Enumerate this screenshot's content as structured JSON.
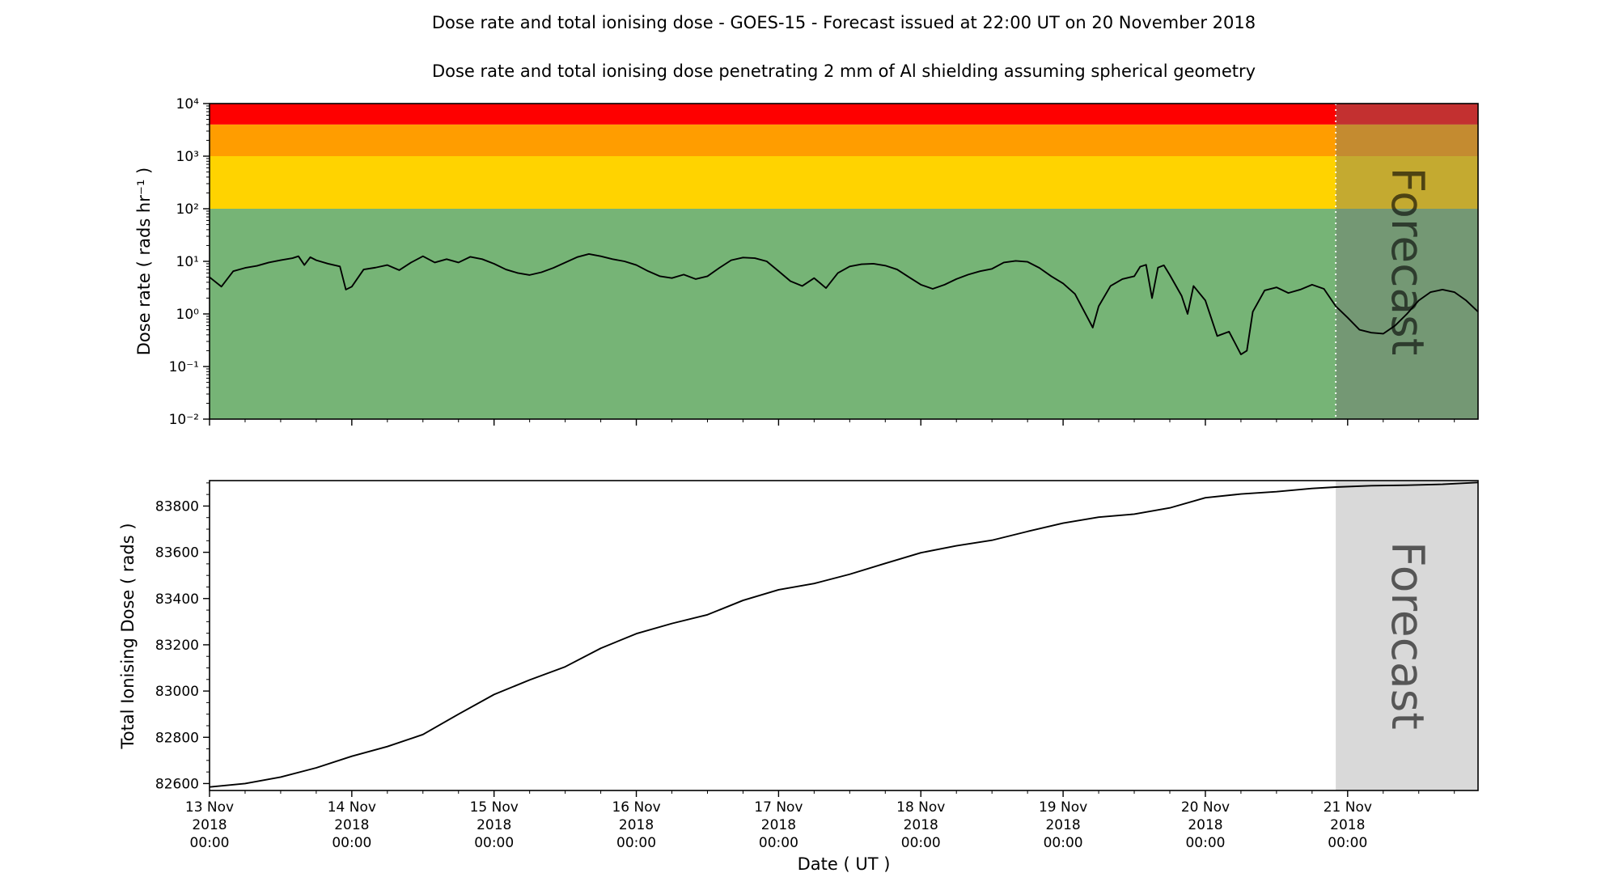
{
  "figure": {
    "title": "Dose rate and total ionising dose - GOES-15 - Forecast issued at 22:00 UT on 20 November 2018",
    "subtitle": "Dose rate and total ionising dose penetrating 2 mm of Al shielding assuming spherical geometry",
    "xlabel": "Date ( UT )",
    "forecast_label": "Forecast",
    "satellite": "GOES-15",
    "issued": "22:00 UT on 20 November 2018"
  },
  "colors": {
    "band_green": "#76b476",
    "band_yellow": "#ffd300",
    "band_orange": "#ff9d00",
    "band_red": "#fe0000",
    "forecast_overlay": "#737373",
    "forecast_fill_bottom": "#d9d9d9",
    "line": "#000000",
    "forecast_divider": "#ffffff",
    "watermark": "#6f6f6f"
  },
  "x_axis": {
    "tick_hours": [
      0,
      24,
      48,
      72,
      96,
      120,
      144,
      168,
      192
    ],
    "tick_labels": [
      [
        "13 Nov",
        "2018",
        "00:00"
      ],
      [
        "14 Nov",
        "2018",
        "00:00"
      ],
      [
        "15 Nov",
        "2018",
        "00:00"
      ],
      [
        "16 Nov",
        "2018",
        "00:00"
      ],
      [
        "17 Nov",
        "2018",
        "00:00"
      ],
      [
        "18 Nov",
        "2018",
        "00:00"
      ],
      [
        "19 Nov",
        "2018",
        "00:00"
      ],
      [
        "20 Nov",
        "2018",
        "00:00"
      ],
      [
        "21 Nov",
        "2018",
        "00:00"
      ]
    ],
    "minor_tick_interval_hours": 6,
    "start": "13 Nov 2018 00:00",
    "end_hour": 214
  },
  "chart_data": [
    {
      "type": "line",
      "name": "dose-rate",
      "title": "Dose rate",
      "ylabel": "Dose rate ( rads hr⁻¹ )",
      "yscale": "log",
      "ylim": [
        0.01,
        10000
      ],
      "xlim_hours": [
        0,
        214
      ],
      "forecast_start_hour": 190,
      "ytick_values": [
        0.01,
        0.1,
        1,
        10,
        100,
        1000,
        10000
      ],
      "ytick_labels": [
        "10⁻²",
        "10⁻¹",
        "10⁰",
        "10¹",
        "10²",
        "10³",
        "10⁴"
      ],
      "bands": [
        {
          "name": "green",
          "from": 0.01,
          "to": 100,
          "color": "#76b476"
        },
        {
          "name": "yellow",
          "from": 100,
          "to": 1000,
          "color": "#ffd300"
        },
        {
          "name": "orange",
          "from": 1000,
          "to": 4000,
          "color": "#ff9d00"
        },
        {
          "name": "red",
          "from": 4000,
          "to": 10000,
          "color": "#fe0000"
        }
      ],
      "points": [
        [
          0,
          5.0
        ],
        [
          2,
          3.3
        ],
        [
          4,
          6.5
        ],
        [
          6,
          7.5
        ],
        [
          8,
          8.2
        ],
        [
          10,
          9.5
        ],
        [
          12,
          10.5
        ],
        [
          14,
          11.5
        ],
        [
          15,
          12.5
        ],
        [
          16,
          8.5
        ],
        [
          17,
          12.0
        ],
        [
          18,
          10.5
        ],
        [
          20,
          9.0
        ],
        [
          22,
          8.0
        ],
        [
          23,
          2.9
        ],
        [
          24,
          3.3
        ],
        [
          26,
          7.0
        ],
        [
          28,
          7.6
        ],
        [
          30,
          8.5
        ],
        [
          32,
          6.8
        ],
        [
          34,
          9.5
        ],
        [
          36,
          12.5
        ],
        [
          38,
          9.5
        ],
        [
          40,
          11.0
        ],
        [
          42,
          9.5
        ],
        [
          44,
          12.2
        ],
        [
          46,
          11.0
        ],
        [
          48,
          9.0
        ],
        [
          50,
          7.0
        ],
        [
          52,
          6.0
        ],
        [
          54,
          5.5
        ],
        [
          56,
          6.2
        ],
        [
          58,
          7.5
        ],
        [
          60,
          9.5
        ],
        [
          62,
          12.0
        ],
        [
          64,
          13.8
        ],
        [
          66,
          12.5
        ],
        [
          68,
          11.0
        ],
        [
          70,
          10.0
        ],
        [
          72,
          8.5
        ],
        [
          74,
          6.5
        ],
        [
          76,
          5.2
        ],
        [
          78,
          4.8
        ],
        [
          80,
          5.6
        ],
        [
          82,
          4.6
        ],
        [
          84,
          5.2
        ],
        [
          86,
          7.5
        ],
        [
          88,
          10.5
        ],
        [
          90,
          11.8
        ],
        [
          92,
          11.5
        ],
        [
          94,
          10.0
        ],
        [
          96,
          6.5
        ],
        [
          98,
          4.2
        ],
        [
          100,
          3.4
        ],
        [
          102,
          4.8
        ],
        [
          104,
          3.1
        ],
        [
          106,
          6.0
        ],
        [
          108,
          8.0
        ],
        [
          110,
          8.8
        ],
        [
          112,
          9.0
        ],
        [
          114,
          8.3
        ],
        [
          116,
          7.0
        ],
        [
          118,
          5.0
        ],
        [
          120,
          3.6
        ],
        [
          122,
          3.0
        ],
        [
          124,
          3.6
        ],
        [
          126,
          4.6
        ],
        [
          128,
          5.6
        ],
        [
          130,
          6.5
        ],
        [
          132,
          7.2
        ],
        [
          134,
          9.5
        ],
        [
          136,
          10.2
        ],
        [
          138,
          9.8
        ],
        [
          140,
          7.5
        ],
        [
          142,
          5.2
        ],
        [
          144,
          3.8
        ],
        [
          146,
          2.4
        ],
        [
          148,
          0.9
        ],
        [
          149,
          0.55
        ],
        [
          150,
          1.4
        ],
        [
          152,
          3.4
        ],
        [
          154,
          4.6
        ],
        [
          156,
          5.2
        ],
        [
          157,
          7.9
        ],
        [
          158,
          8.6
        ],
        [
          159,
          2.0
        ],
        [
          160,
          7.6
        ],
        [
          161,
          8.4
        ],
        [
          162,
          5.5
        ],
        [
          164,
          2.2
        ],
        [
          165,
          1.0
        ],
        [
          166,
          3.4
        ],
        [
          168,
          1.8
        ],
        [
          170,
          0.38
        ],
        [
          172,
          0.46
        ],
        [
          174,
          0.17
        ],
        [
          175,
          0.2
        ],
        [
          176,
          1.1
        ],
        [
          178,
          2.8
        ],
        [
          180,
          3.2
        ],
        [
          182,
          2.5
        ],
        [
          184,
          2.9
        ],
        [
          186,
          3.6
        ],
        [
          188,
          3.0
        ],
        [
          190,
          1.4
        ],
        [
          192,
          0.85
        ],
        [
          194,
          0.5
        ],
        [
          196,
          0.44
        ],
        [
          198,
          0.42
        ],
        [
          200,
          0.6
        ],
        [
          202,
          1.0
        ],
        [
          204,
          1.8
        ],
        [
          206,
          2.6
        ],
        [
          208,
          2.9
        ],
        [
          210,
          2.6
        ],
        [
          212,
          1.8
        ],
        [
          214,
          1.1
        ]
      ]
    },
    {
      "type": "line",
      "name": "total-ionising-dose",
      "title": "Total ionising dose",
      "ylabel": "Total Ionising Dose ( rads )",
      "yscale": "linear",
      "ylim": [
        82570,
        83910
      ],
      "xlim_hours": [
        0,
        214
      ],
      "forecast_start_hour": 190,
      "ytick_values": [
        82600,
        82800,
        83000,
        83200,
        83400,
        83600,
        83800
      ],
      "minor_tick_interval": 50,
      "points": [
        [
          0,
          82585
        ],
        [
          6,
          82600
        ],
        [
          12,
          82628
        ],
        [
          18,
          82668
        ],
        [
          24,
          82718
        ],
        [
          30,
          82760
        ],
        [
          36,
          82812
        ],
        [
          42,
          82900
        ],
        [
          48,
          82985
        ],
        [
          54,
          83048
        ],
        [
          60,
          83105
        ],
        [
          66,
          83185
        ],
        [
          72,
          83248
        ],
        [
          78,
          83292
        ],
        [
          84,
          83330
        ],
        [
          90,
          83392
        ],
        [
          96,
          83438
        ],
        [
          102,
          83465
        ],
        [
          108,
          83505
        ],
        [
          114,
          83552
        ],
        [
          120,
          83598
        ],
        [
          126,
          83628
        ],
        [
          132,
          83652
        ],
        [
          138,
          83690
        ],
        [
          144,
          83726
        ],
        [
          150,
          83752
        ],
        [
          156,
          83765
        ],
        [
          162,
          83792
        ],
        [
          168,
          83836
        ],
        [
          174,
          83852
        ],
        [
          180,
          83862
        ],
        [
          186,
          83876
        ],
        [
          190,
          83882
        ],
        [
          196,
          83888
        ],
        [
          202,
          83890
        ],
        [
          208,
          83894
        ],
        [
          214,
          83902
        ]
      ]
    }
  ]
}
